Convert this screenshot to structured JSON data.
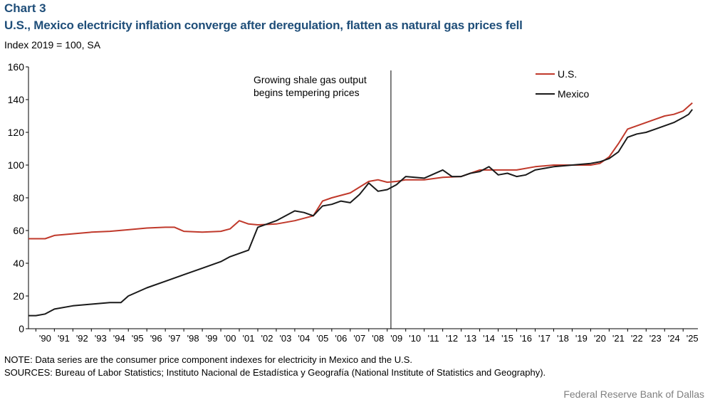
{
  "header": {
    "chart_label": "Chart 3",
    "title": "U.S., Mexico electricity inflation converge after deregulation, flatten as natural gas prices fell",
    "subtitle": "Index 2019 = 100, SA"
  },
  "footer": {
    "note": "NOTE: Data series are the consumer price component indexes for electricity in Mexico and the U.S.",
    "sources": "SOURCES: Bureau of Labor Statistics; Instituto Nacional de Estadística y Geografía (National Institute of Statistics and Geography).",
    "credit": "Federal Reserve Bank of Dallas"
  },
  "chart_data": {
    "type": "line",
    "title": "U.S., Mexico electricity inflation converge after deregulation, flatten as natural gas prices fell",
    "ylabel": "Index 2019 = 100, SA",
    "xlabel": "",
    "ylim": [
      0,
      160
    ],
    "yticks": [
      0,
      20,
      40,
      60,
      80,
      100,
      120,
      140,
      160
    ],
    "xlim": [
      1989.6,
      2025.8
    ],
    "x_tick_labels": [
      "'90",
      "'91",
      "'92",
      "'93",
      "'94",
      "'95",
      "'96",
      "'97",
      "'98",
      "'99",
      "'00",
      "'01",
      "'02",
      "'03",
      "'04",
      "'05",
      "'06",
      "'07",
      "'08",
      "'09",
      "'10",
      "'11",
      "'12",
      "'13",
      "'14",
      "'15",
      "'16",
      "'17",
      "'18",
      "'19",
      "'20",
      "'21",
      "'22",
      "'23",
      "'24",
      "'25"
    ],
    "x_tick_years": [
      1990,
      1991,
      1992,
      1993,
      1994,
      1995,
      1996,
      1997,
      1998,
      1999,
      2000,
      2001,
      2002,
      2003,
      2004,
      2005,
      2006,
      2007,
      2008,
      2009,
      2010,
      2011,
      2012,
      2013,
      2014,
      2015,
      2016,
      2017,
      2018,
      2019,
      2020,
      2021,
      2022,
      2023,
      2024,
      2025
    ],
    "grid": false,
    "legend": "top-right",
    "annotation": {
      "x": 2009.2,
      "text_line1": "Growing shale gas output",
      "text_line2": "begins tempering prices"
    },
    "series": [
      {
        "name": "U.S.",
        "color": "#c0392b",
        "x": [
          1989.6,
          1990.0,
          1990.5,
          1991.0,
          1992.0,
          1993.0,
          1994.0,
          1995.0,
          1996.0,
          1997.0,
          1997.5,
          1998.0,
          1999.0,
          2000.0,
          2000.5,
          2001.0,
          2001.5,
          2002.0,
          2003.0,
          2004.0,
          2005.0,
          2005.5,
          2006.0,
          2007.0,
          2008.0,
          2008.5,
          2009.0,
          2009.5,
          2010.0,
          2011.0,
          2012.0,
          2013.0,
          2014.0,
          2015.0,
          2016.0,
          2017.0,
          2018.0,
          2019.0,
          2020.0,
          2020.5,
          2021.0,
          2021.5,
          2022.0,
          2022.5,
          2023.0,
          2023.5,
          2024.0,
          2024.5,
          2025.0,
          2025.5
        ],
        "values": [
          55,
          55,
          55,
          57,
          58,
          59,
          59.5,
          60.5,
          61.5,
          62,
          62,
          59.5,
          59,
          59.5,
          61,
          66,
          64,
          63.5,
          64,
          66,
          69,
          78,
          80,
          83,
          90,
          91,
          89.5,
          90,
          91,
          91,
          92.5,
          93,
          97,
          97,
          97,
          99,
          100,
          100,
          100,
          101,
          105,
          113,
          122,
          124,
          126,
          128,
          130,
          131,
          133,
          138
        ]
      },
      {
        "name": "Mexico",
        "color": "#1a1a1a",
        "x": [
          1989.6,
          1990.0,
          1990.5,
          1991.0,
          1992.0,
          1993.0,
          1994.0,
          1994.6,
          1995.0,
          1996.0,
          1997.0,
          1998.0,
          1999.0,
          2000.0,
          2000.5,
          2001.0,
          2001.5,
          2002.0,
          2003.0,
          2004.0,
          2004.5,
          2005.0,
          2005.5,
          2006.0,
          2006.5,
          2007.0,
          2007.5,
          2008.0,
          2008.5,
          2009.0,
          2009.5,
          2010.0,
          2011.0,
          2012.0,
          2012.5,
          2013.0,
          2013.5,
          2014.0,
          2014.5,
          2015.0,
          2015.5,
          2016.0,
          2016.5,
          2017.0,
          2017.5,
          2018.0,
          2019.0,
          2020.0,
          2020.5,
          2021.0,
          2021.5,
          2022.0,
          2022.5,
          2023.0,
          2023.5,
          2024.0,
          2024.5,
          2025.0,
          2025.3,
          2025.5
        ],
        "values": [
          8,
          8,
          9,
          12,
          14,
          15,
          16,
          16,
          20,
          25,
          29,
          33,
          37,
          41,
          44,
          46,
          48,
          62,
          66,
          72,
          71,
          69,
          75,
          76,
          78,
          77,
          82,
          89,
          84,
          85,
          88,
          93,
          92,
          97,
          93,
          93,
          95,
          96,
          99,
          94,
          95,
          93,
          94,
          97,
          98,
          99,
          100,
          101,
          102,
          104,
          108,
          117,
          119,
          120,
          122,
          124,
          126,
          129,
          131,
          134
        ]
      }
    ]
  }
}
